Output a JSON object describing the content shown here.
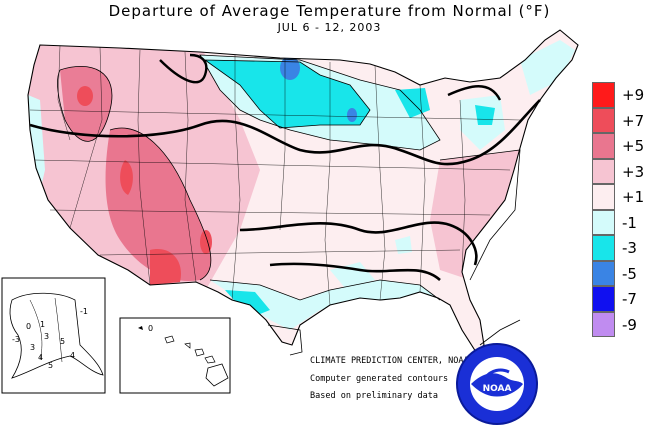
{
  "title": "Departure of Average Temperature from Normal (°F)",
  "subtitle": "JUL 6 - 12, 2003",
  "legend": [
    {
      "label": "+9",
      "color": "#ff1a1a"
    },
    {
      "label": "+7",
      "color": "#ee4d5a"
    },
    {
      "label": "+5",
      "color": "#e9768f"
    },
    {
      "label": "+3",
      "color": "#f6c4d2"
    },
    {
      "label": "+1",
      "color": "#fdeef0"
    },
    {
      "label": "-1",
      "color": "#d4fbfb"
    },
    {
      "label": "-3",
      "color": "#18e5ea"
    },
    {
      "label": "-5",
      "color": "#3a84e4"
    },
    {
      "label": "-7",
      "color": "#1010f0"
    },
    {
      "label": "-9",
      "color": "#c08cf0"
    }
  ],
  "credits": {
    "center": "CLIMATE PREDICTION CENTER, NOAA",
    "contours": "Computer generated contours",
    "basis": "Based on preliminary data"
  },
  "logo_text": "NOAA",
  "alaska_labels": [
    "0",
    "1",
    "3",
    "-3",
    "3",
    "4",
    "5",
    "5",
    "4",
    "-1"
  ],
  "hawaii_labels": [
    "0"
  ]
}
